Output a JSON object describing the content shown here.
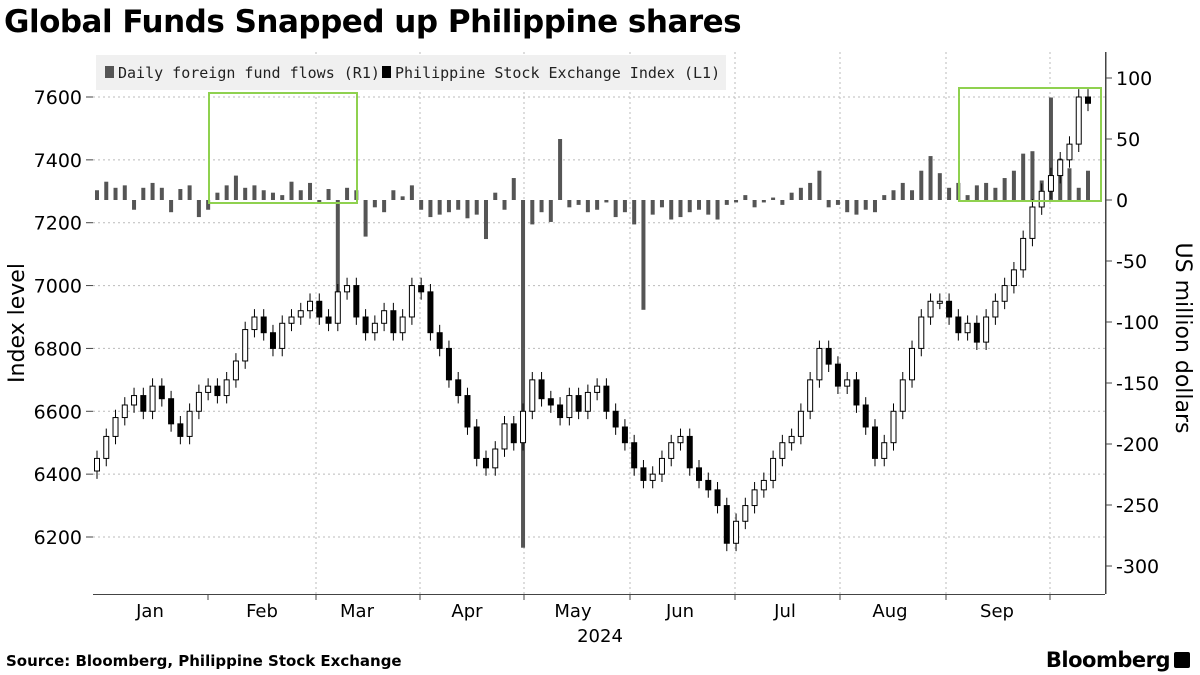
{
  "title": "Global Funds Snapped up Philippine shares",
  "source": "Source: Bloomberg, Philippine Stock Exchange",
  "brand": "Bloomberg",
  "chart_data": {
    "type": "candlestick+bar",
    "title": "Global Funds Snapped up Philippine shares",
    "legend": {
      "placement": "top-left",
      "entries": [
        "Daily foreign fund flows (R1)",
        "Philippine Stock Exchange Index  (L1)"
      ]
    },
    "left_axis": {
      "label": "Index level",
      "range": [
        6050,
        7750
      ],
      "ticks": [
        6200,
        6400,
        6600,
        6800,
        7000,
        7200,
        7400,
        7600
      ]
    },
    "right_axis": {
      "label": "US million dollars",
      "range": [
        -320,
        125
      ],
      "ticks": [
        100,
        50,
        0,
        -50,
        -100,
        -150,
        -200,
        -250,
        -300
      ]
    },
    "x_axis": {
      "months": [
        "Jan",
        "Feb",
        "Mar",
        "Apr",
        "May",
        "Jun",
        "Jul",
        "Aug",
        "Sep"
      ],
      "year": "2024"
    },
    "grid": true,
    "highlight_color": "#8fd14f",
    "flow_color": "#555555",
    "index_closes": [
      6450,
      6520,
      6580,
      6620,
      6650,
      6600,
      6680,
      6640,
      6560,
      6520,
      6600,
      6660,
      6680,
      6650,
      6700,
      6760,
      6860,
      6900,
      6850,
      6800,
      6880,
      6900,
      6920,
      6950,
      6900,
      6880,
      6980,
      7000,
      6900,
      6850,
      6880,
      6920,
      6850,
      6900,
      7000,
      6980,
      6850,
      6800,
      6700,
      6650,
      6550,
      6450,
      6420,
      6480,
      6560,
      6500,
      6600,
      6700,
      6640,
      6620,
      6580,
      6650,
      6600,
      6660,
      6680,
      6600,
      6550,
      6500,
      6420,
      6380,
      6400,
      6450,
      6500,
      6520,
      6420,
      6380,
      6350,
      6300,
      6180,
      6250,
      6300,
      6350,
      6380,
      6450,
      6500,
      6520,
      6600,
      6700,
      6800,
      6750,
      6680,
      6700,
      6620,
      6550,
      6450,
      6500,
      6600,
      6700,
      6800,
      6900,
      6950,
      6950,
      6900,
      6850,
      6880,
      6820,
      6900,
      6950,
      7000,
      7050,
      7150,
      7250,
      7300,
      7350,
      7400,
      7450,
      7600,
      7580
    ],
    "fund_flows": [
      8,
      15,
      10,
      12,
      -8,
      10,
      14,
      10,
      -10,
      9,
      12,
      -14,
      -8,
      6,
      12,
      20,
      10,
      12,
      8,
      6,
      4,
      15,
      8,
      14,
      -3,
      9,
      -80,
      10,
      8,
      -30,
      -6,
      -10,
      8,
      3,
      12,
      -8,
      -14,
      -12,
      -10,
      -8,
      -15,
      -12,
      -32,
      6,
      -8,
      18,
      -285,
      -20,
      -10,
      -18,
      50,
      -6,
      -4,
      -10,
      -8,
      -2,
      -14,
      -10,
      -20,
      -90,
      -12,
      -6,
      -16,
      -14,
      -10,
      -8,
      -12,
      -16,
      -4,
      -2,
      4,
      -6,
      -2,
      2,
      -4,
      6,
      10,
      14,
      24,
      -6,
      -4,
      -10,
      -12,
      -8,
      -10,
      4,
      8,
      14,
      8,
      24,
      36,
      22,
      10,
      14,
      4,
      12,
      14,
      10,
      18,
      24,
      38,
      40,
      16,
      84,
      34,
      26,
      10,
      24
    ],
    "highlights": [
      {
        "from": "Feb",
        "to": "Mar",
        "range_usd": [
          0,
          88
        ]
      },
      {
        "from": "Sep",
        "to": "Oct",
        "range_usd": [
          0,
          90
        ]
      }
    ]
  }
}
